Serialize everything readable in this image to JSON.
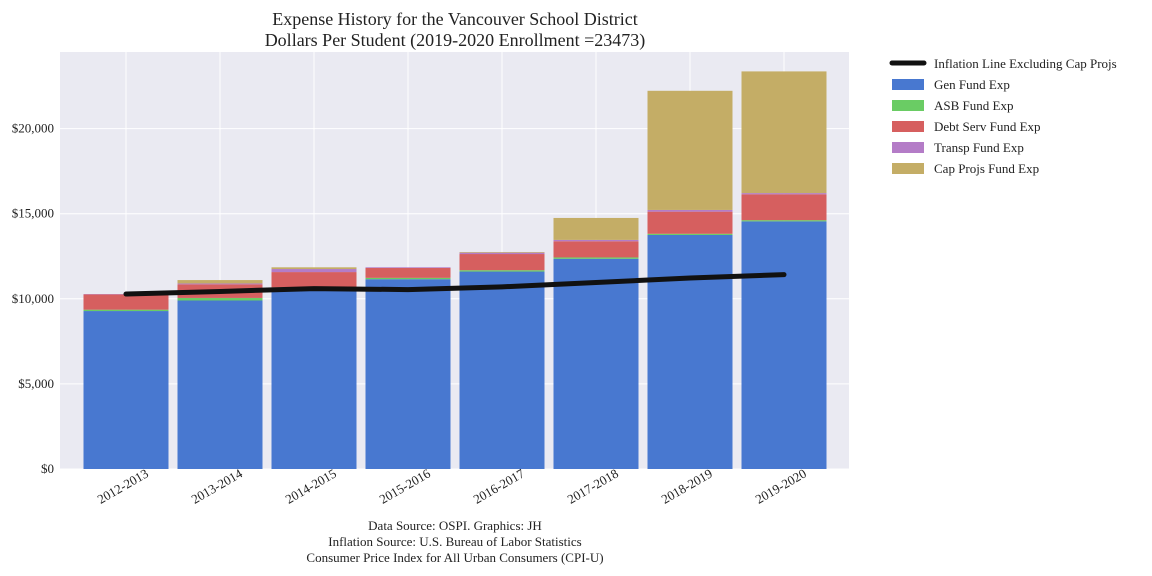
{
  "chart_data": {
    "type": "bar",
    "stacked": true,
    "title": "Expense History for the Vancouver School District",
    "subtitle": "Dollars Per Student (2019-2020 Enrollment =23473)",
    "xlabel": "",
    "ylabel": "",
    "ylim": [
      0,
      24500
    ],
    "yticks": [
      0,
      5000,
      10000,
      15000,
      20000
    ],
    "ytick_labels": [
      "$0",
      "$5,000",
      "$10,000",
      "$15,000",
      "$20,000"
    ],
    "grid": true,
    "legend_position": "outside-top-right",
    "categories": [
      "2012-2013",
      "2013-2014",
      "2014-2015",
      "2015-2016",
      "2016-2017",
      "2017-2018",
      "2018-2019",
      "2019-2020"
    ],
    "series": [
      {
        "name": "Gen Fund Exp",
        "color": "#4878d0",
        "values": [
          9280,
          9900,
          10600,
          11150,
          11600,
          12350,
          13750,
          14550
        ]
      },
      {
        "name": "ASB Fund Exp",
        "color": "#6acc64",
        "values": [
          80,
          150,
          70,
          80,
          80,
          80,
          70,
          70
        ]
      },
      {
        "name": "Debt Serv Fund Exp",
        "color": "#d65f5f",
        "values": [
          900,
          800,
          900,
          580,
          950,
          950,
          1300,
          1520
        ]
      },
      {
        "name": "Transp Fund Exp",
        "color": "#b47cc7",
        "values": [
          20,
          50,
          180,
          40,
          80,
          80,
          100,
          70
        ]
      },
      {
        "name": "Cap Projs Fund Exp",
        "color": "#c4ad66",
        "values": [
          0,
          200,
          100,
          0,
          40,
          1290,
          7000,
          7150
        ]
      }
    ],
    "line": {
      "name": "Inflation Line Excluding Cap Projs",
      "color": "#111111",
      "values": [
        10280,
        10430,
        10600,
        10540,
        10700,
        10960,
        11220,
        11420
      ]
    },
    "footer": [
      "Data Source: OSPI. Graphics: JH",
      "Inflation Source: U.S. Bureau of Labor Statistics",
      "Consumer Price Index for All Urban Consumers (CPI-U)"
    ]
  }
}
